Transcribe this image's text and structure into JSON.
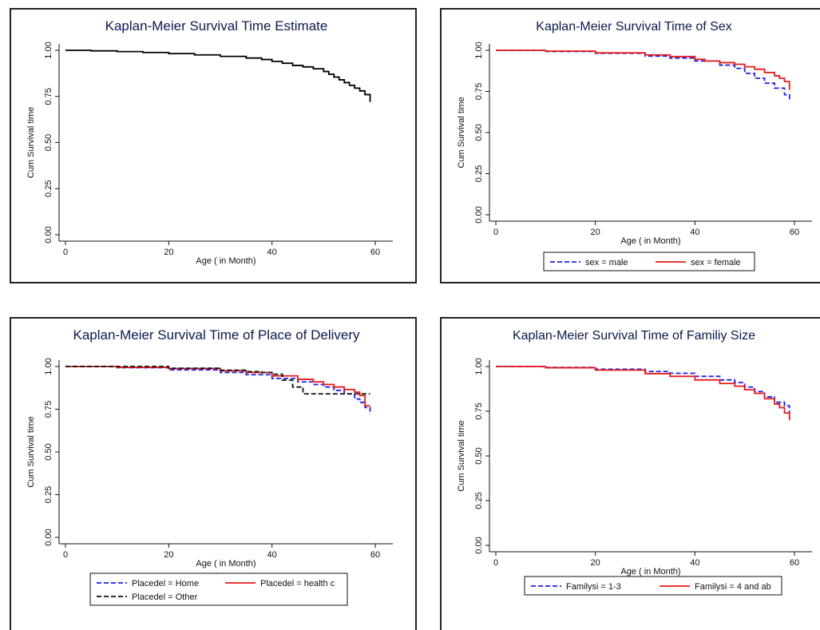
{
  "chart_data": [
    {
      "type": "line",
      "title": "Kaplan-Meier Survival Time Estimate",
      "xlabel": "Age ( in Month)",
      "ylabel": "Cum Survival time",
      "xlim": [
        0,
        60
      ],
      "ylim": [
        0,
        1
      ],
      "x_ticks": [
        "0",
        "20",
        "40",
        "60"
      ],
      "y_ticks": [
        "0.00",
        "0.25",
        "0.50",
        "0.75",
        "1.00"
      ],
      "grid": false,
      "legend": "none",
      "series": [
        {
          "color": "#000000",
          "dash": "solid",
          "x": [
            0,
            5,
            10,
            15,
            20,
            25,
            30,
            35,
            38,
            40,
            42,
            44,
            46,
            48,
            50,
            51,
            52,
            53,
            54,
            55,
            56,
            57,
            58,
            59
          ],
          "y": [
            1.0,
            0.997,
            0.993,
            0.988,
            0.982,
            0.975,
            0.967,
            0.958,
            0.95,
            0.94,
            0.93,
            0.918,
            0.91,
            0.9,
            0.885,
            0.87,
            0.855,
            0.84,
            0.825,
            0.81,
            0.795,
            0.78,
            0.76,
            0.72
          ]
        }
      ]
    },
    {
      "type": "line",
      "title": "Kaplan-Meier Survival Time of Sex",
      "xlabel": "Age ( in Month)",
      "ylabel": "Cum Survival time",
      "xlim": [
        0,
        60
      ],
      "ylim": [
        0,
        1
      ],
      "x_ticks": [
        "0",
        "20",
        "40",
        "60"
      ],
      "y_ticks": [
        "0.00",
        "0.25",
        "0.50",
        "0.75",
        "1.00"
      ],
      "grid": false,
      "legend": "bottom",
      "series": [
        {
          "name": "sex = male",
          "color": "#1f1fe6",
          "dash": "dashed",
          "x": [
            0,
            10,
            20,
            30,
            35,
            40,
            45,
            48,
            50,
            52,
            54,
            56,
            58,
            59
          ],
          "y": [
            1.0,
            0.993,
            0.982,
            0.965,
            0.953,
            0.935,
            0.91,
            0.89,
            0.86,
            0.83,
            0.8,
            0.77,
            0.73,
            0.69
          ]
        },
        {
          "name": "sex = female",
          "color": "#e61a1a",
          "dash": "solid",
          "x": [
            0,
            10,
            20,
            30,
            35,
            40,
            42,
            45,
            48,
            50,
            52,
            54,
            56,
            57,
            58,
            59
          ],
          "y": [
            1.0,
            0.995,
            0.985,
            0.972,
            0.962,
            0.945,
            0.935,
            0.925,
            0.915,
            0.9,
            0.885,
            0.865,
            0.845,
            0.83,
            0.81,
            0.76
          ]
        }
      ]
    },
    {
      "type": "line",
      "title": "Kaplan-Meier Survival Time of Place of Delivery",
      "xlabel": "Age ( in Month)",
      "ylabel": "Cum Survival time",
      "xlim": [
        0,
        60
      ],
      "ylim": [
        0,
        1
      ],
      "x_ticks": [
        "0",
        "20",
        "40",
        "60"
      ],
      "y_ticks": [
        "0.00",
        "0.25",
        "0.50",
        "0.75",
        "1.00"
      ],
      "grid": false,
      "legend": "bottom",
      "series": [
        {
          "name": "Placedel = Home",
          "color": "#1f1fe6",
          "dash": "dashed",
          "x": [
            0,
            10,
            20,
            30,
            35,
            40,
            45,
            48,
            50,
            52,
            54,
            56,
            57,
            58,
            59
          ],
          "y": [
            1.0,
            0.993,
            0.98,
            0.965,
            0.952,
            0.93,
            0.91,
            0.895,
            0.88,
            0.86,
            0.84,
            0.81,
            0.79,
            0.76,
            0.72
          ]
        },
        {
          "name": "Placedel = health c",
          "color": "#e61a1a",
          "dash": "solid",
          "x": [
            0,
            10,
            20,
            30,
            35,
            40,
            45,
            48,
            50,
            52,
            54,
            56,
            57,
            58,
            59
          ],
          "y": [
            1.0,
            0.995,
            0.988,
            0.975,
            0.965,
            0.945,
            0.925,
            0.91,
            0.895,
            0.88,
            0.865,
            0.85,
            0.83,
            0.77,
            0.77
          ]
        },
        {
          "name": "Placedel = Other",
          "color": "#111111",
          "dash": "dashed",
          "x": [
            0,
            10,
            20,
            30,
            35,
            38,
            40,
            42,
            44,
            46,
            48,
            50,
            52,
            54,
            56,
            58,
            59
          ],
          "y": [
            1.0,
            1.0,
            0.99,
            0.978,
            0.97,
            0.965,
            0.955,
            0.92,
            0.88,
            0.84,
            0.84,
            0.84,
            0.84,
            0.84,
            0.84,
            0.84,
            0.84
          ]
        }
      ]
    },
    {
      "type": "line",
      "title": "Kaplan-Meier Survival Time of Familiy Size",
      "xlabel": "Age ( in Month)",
      "ylabel": "Cum Survival time",
      "xlim": [
        0,
        60
      ],
      "ylim": [
        0,
        1
      ],
      "x_ticks": [
        "0",
        "20",
        "40",
        "60"
      ],
      "y_ticks": [
        "0.00",
        "0.25",
        "0.50",
        "0.75",
        "1.00"
      ],
      "grid": false,
      "legend": "bottom",
      "series": [
        {
          "name": "Familysi = 1-3",
          "color": "#1f1fe6",
          "dash": "dashed",
          "x": [
            0,
            10,
            20,
            30,
            35,
            40,
            45,
            48,
            50,
            52,
            54,
            56,
            58,
            59
          ],
          "y": [
            1.0,
            0.995,
            0.985,
            0.972,
            0.962,
            0.945,
            0.925,
            0.91,
            0.885,
            0.86,
            0.83,
            0.8,
            0.78,
            0.74
          ]
        },
        {
          "name": "Familysi = 4 and ab",
          "color": "#e61a1a",
          "dash": "solid",
          "x": [
            0,
            10,
            20,
            30,
            35,
            40,
            45,
            48,
            50,
            52,
            54,
            56,
            57,
            58,
            59
          ],
          "y": [
            1.0,
            0.993,
            0.98,
            0.96,
            0.945,
            0.925,
            0.905,
            0.89,
            0.87,
            0.85,
            0.82,
            0.79,
            0.77,
            0.74,
            0.7
          ]
        }
      ]
    }
  ]
}
